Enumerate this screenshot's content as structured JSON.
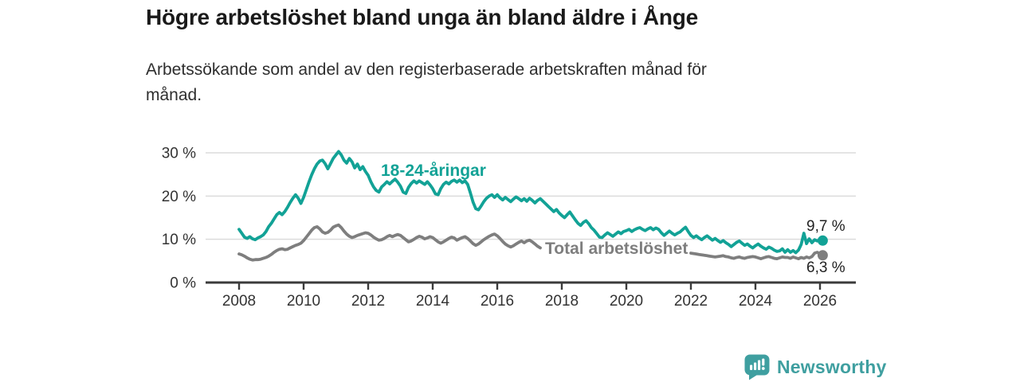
{
  "header": {
    "title": "Högre arbetslöshet bland unga än bland äldre i Ånge",
    "subtitle": "Arbetssökande som andel av den registerbaserade arbetskraften månad för månad."
  },
  "footer": {
    "brand": "Newsworthy",
    "logo_icon": "bar-chart-speech-bubble",
    "brand_color": "#3f9fa0"
  },
  "chart_data": {
    "type": "line",
    "title": "Högre arbetslöshet bland unga än bland äldre i Ånge",
    "x_unit": "month",
    "x_start": "2008-01",
    "x_end": "2026-02",
    "points_per_year": 12,
    "x_tick_labels": [
      "2008",
      "2010",
      "2012",
      "2014",
      "2016",
      "2018",
      "2020",
      "2022",
      "2024",
      "2026"
    ],
    "y_tick_labels": [
      "30 %",
      "20 %",
      "10 %",
      "0 %"
    ],
    "y_tick_values": [
      30,
      20,
      10,
      0
    ],
    "ylim": [
      0,
      31
    ],
    "grid": "horizontal",
    "legend_position": "inline-labels",
    "axis_color": "#3b3b3b",
    "grid_color": "#dcdcdc",
    "series": [
      {
        "name": "18-24-åringar",
        "color": "#12a296",
        "end_label": "9,7 %",
        "end_value": 9.7,
        "values": [
          12.3,
          11.4,
          10.5,
          10.2,
          10.6,
          10.1,
          9.9,
          10.3,
          10.6,
          11.0,
          11.8,
          12.9,
          13.7,
          14.7,
          15.7,
          16.2,
          15.7,
          16.4,
          17.4,
          18.5,
          19.5,
          20.3,
          19.5,
          18.3,
          19.7,
          21.5,
          23.3,
          24.9,
          26.3,
          27.4,
          28.1,
          28.3,
          27.5,
          26.3,
          27.5,
          28.7,
          29.5,
          30.3,
          29.5,
          28.3,
          27.6,
          28.7,
          27.9,
          26.5,
          27.4,
          26.1,
          26.8,
          25.7,
          24.8,
          23.3,
          22.1,
          21.3,
          20.9,
          22.1,
          22.7,
          23.3,
          22.8,
          23.4,
          23.9,
          23.2,
          22.3,
          20.9,
          20.6,
          22.0,
          22.9,
          23.5,
          23.0,
          23.5,
          23.1,
          22.7,
          23.3,
          22.6,
          21.7,
          20.5,
          20.3,
          21.7,
          22.7,
          23.2,
          22.8,
          23.4,
          23.7,
          23.2,
          23.7,
          23.1,
          23.5,
          22.7,
          20.7,
          18.6,
          17.1,
          16.8,
          17.7,
          18.7,
          19.5,
          20.0,
          20.3,
          19.7,
          20.3,
          19.6,
          19.1,
          19.7,
          19.2,
          18.7,
          19.3,
          19.8,
          19.4,
          18.9,
          19.4,
          18.8,
          19.5,
          19.0,
          18.4,
          19.0,
          19.4,
          18.8,
          18.2,
          17.6,
          17.0,
          16.4,
          16.9,
          16.1,
          15.5,
          15.0,
          15.7,
          16.3,
          15.4,
          14.5,
          13.7,
          13.2,
          13.9,
          14.3,
          13.6,
          12.7,
          12.1,
          11.3,
          10.5,
          10.4,
          11.0,
          11.5,
          11.1,
          10.7,
          11.2,
          11.7,
          11.3,
          11.8,
          12.0,
          12.3,
          11.8,
          12.2,
          12.5,
          12.7,
          12.3,
          12.0,
          12.4,
          12.7,
          12.2,
          12.6,
          12.3,
          11.5,
          10.9,
          11.4,
          11.9,
          11.4,
          11.0,
          11.4,
          11.7,
          12.3,
          12.8,
          11.8,
          10.9,
          10.4,
          10.8,
          10.3,
          9.9,
          10.4,
          10.8,
          10.3,
          9.8,
          10.2,
          9.7,
          9.3,
          9.7,
          9.2,
          8.8,
          8.3,
          8.8,
          9.3,
          9.6,
          9.1,
          8.6,
          8.9,
          8.4,
          8.0,
          8.5,
          8.9,
          8.4,
          8.0,
          7.7,
          8.2,
          7.9,
          7.5,
          7.2,
          7.3,
          7.8,
          7.0,
          7.6,
          7.0,
          7.4,
          6.9,
          7.5,
          8.8,
          11.4,
          9.0,
          10.1,
          9.2,
          9.9,
          9.6,
          10.0,
          9.7
        ]
      },
      {
        "name": "Total arbetslöshet",
        "color": "#7e7e7e",
        "end_label": "6,3 %",
        "end_value": 6.3,
        "hidden_by_label_from": "2017-06",
        "hidden_by_label_to": "2021-12",
        "values": [
          6.6,
          6.4,
          6.1,
          5.7,
          5.4,
          5.2,
          5.3,
          5.3,
          5.4,
          5.6,
          5.8,
          6.1,
          6.5,
          7.0,
          7.4,
          7.7,
          7.8,
          7.6,
          7.7,
          8.0,
          8.3,
          8.6,
          8.8,
          9.1,
          9.7,
          10.5,
          11.3,
          12.1,
          12.7,
          12.9,
          12.4,
          11.7,
          11.4,
          11.6,
          12.1,
          12.8,
          13.1,
          13.3,
          12.7,
          11.9,
          11.2,
          10.7,
          10.4,
          10.6,
          10.9,
          11.1,
          11.3,
          11.5,
          11.4,
          11.0,
          10.5,
          10.1,
          9.8,
          9.9,
          10.2,
          10.6,
          10.9,
          10.6,
          10.9,
          11.1,
          10.9,
          10.4,
          9.9,
          9.4,
          9.6,
          10.0,
          10.4,
          10.7,
          10.5,
          10.1,
          10.3,
          10.6,
          10.4,
          9.9,
          9.4,
          9.1,
          9.4,
          9.8,
          10.2,
          10.5,
          10.3,
          9.8,
          10.1,
          10.4,
          10.6,
          10.2,
          9.6,
          9.0,
          8.6,
          8.9,
          9.4,
          9.9,
          10.3,
          10.7,
          11.0,
          11.2,
          10.8,
          10.2,
          9.5,
          8.9,
          8.5,
          8.2,
          8.5,
          8.9,
          9.3,
          9.6,
          9.2,
          9.6,
          9.8,
          9.4,
          8.9,
          8.4,
          8.0,
          7.8,
          8.1,
          8.5,
          8.8,
          9.1,
          8.8,
          9.1,
          9.3,
          8.9,
          8.5,
          8.1,
          7.8,
          7.6,
          7.8,
          8.1,
          8.3,
          8.5,
          8.3,
          8.6,
          8.7,
          8.4,
          8.0,
          7.7,
          7.5,
          7.4,
          7.6,
          7.9,
          8.1,
          8.3,
          8.5,
          8.7,
          9.0,
          9.3,
          9.7,
          10.1,
          10.2,
          10.0,
          9.8,
          9.6,
          9.4,
          9.2,
          9.0,
          8.9,
          8.8,
          8.6,
          8.3,
          8.0,
          7.8,
          7.6,
          7.4,
          7.3,
          7.2,
          7.1,
          7.0,
          6.9,
          6.8,
          6.7,
          6.6,
          6.5,
          6.4,
          6.3,
          6.2,
          6.1,
          6.0,
          5.9,
          6.0,
          6.1,
          6.2,
          6.0,
          5.9,
          5.7,
          5.6,
          5.8,
          5.9,
          5.7,
          5.6,
          5.8,
          5.9,
          6.0,
          5.9,
          5.7,
          5.5,
          5.7,
          5.9,
          6.0,
          5.8,
          5.6,
          5.5,
          5.7,
          5.9,
          5.8,
          5.8,
          5.6,
          5.9,
          5.7,
          5.5,
          5.8,
          5.6,
          5.9,
          5.7,
          6.0,
          6.8,
          7.0,
          6.6,
          6.3
        ]
      }
    ]
  }
}
